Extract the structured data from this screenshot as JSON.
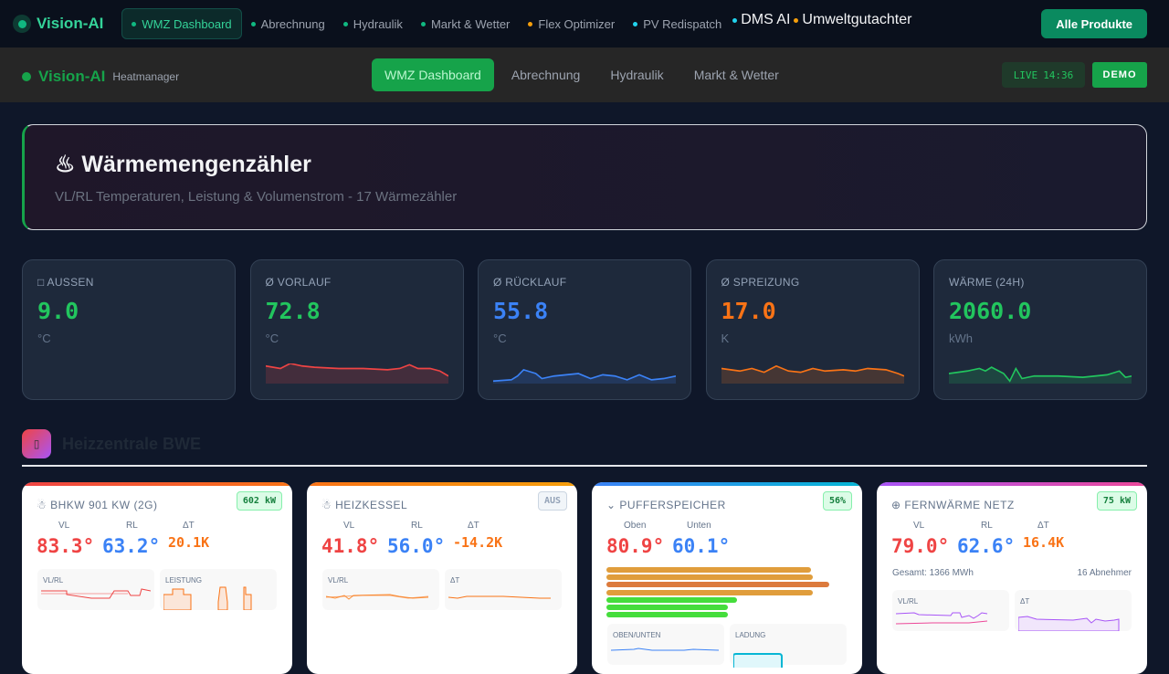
{
  "topbar": {
    "logo": "Vision-AI",
    "items": [
      {
        "label": "WMZ Dashboard",
        "dot": "#10b981"
      },
      {
        "label": "Abrechnung",
        "dot": "#10b981"
      },
      {
        "label": "Hydraulik",
        "dot": "#10b981"
      },
      {
        "label": "Markt & Wetter",
        "dot": "#10b981"
      },
      {
        "label": "Flex Optimizer",
        "dot": "#f59e0b"
      },
      {
        "label": "PV Redispatch",
        "dot": "#22d3ee"
      },
      {
        "label": "DMS AI",
        "dot": "#22d3ee"
      },
      {
        "label": "Umweltgutachter",
        "dot": "#f59e0b"
      }
    ],
    "all_products": "Alle Produkte"
  },
  "header": {
    "logo": "Vision-AI",
    "subtitle": "Heatmanager",
    "nav": [
      "WMZ Dashboard",
      "Abrechnung",
      "Hydraulik",
      "Markt & Wetter"
    ],
    "live_label": "LIVE",
    "time": "14:36",
    "demo": "DEMO"
  },
  "hero": {
    "icon": "fire-icon",
    "title": "Wärmemengenzähler",
    "subtitle": "VL/RL Temperaturen, Leistung & Volumenstrom - 17 Wärmezähler"
  },
  "stats": [
    {
      "label": "□ AUSSEN",
      "value": "9.0",
      "unit": "°C",
      "color": "#22c55e"
    },
    {
      "label": "Ø VORLAUF",
      "value": "72.8",
      "unit": "°C",
      "color": "#22c55e"
    },
    {
      "label": "Ø RÜCKLAUF",
      "value": "55.8",
      "unit": "°C",
      "color": "#3b82f6"
    },
    {
      "label": "Ø SPREIZUNG",
      "value": "17.0",
      "unit": "K",
      "color": "#f97316"
    },
    {
      "label": "WÄRME (24H)",
      "value": "2060.0",
      "unit": "kWh",
      "color": "#22c55e"
    }
  ],
  "section": {
    "icon": "building-icon",
    "title": "Heizzentrale BWE"
  },
  "cards": [
    {
      "title": "BHKW 901 KW (2G)",
      "badge": "602 kW",
      "labels": [
        "VL",
        "RL",
        "ΔT"
      ],
      "values": [
        "83.3°",
        "63.2°",
        "20.1K"
      ],
      "charts": [
        "VL/RL",
        "LEISTUNG"
      ]
    },
    {
      "title": "HEIZKESSEL",
      "badge": "AUS",
      "labels": [
        "VL",
        "RL",
        "ΔT"
      ],
      "values": [
        "41.8°",
        "56.0°",
        "-14.2K"
      ],
      "charts": [
        "VL/RL",
        "ΔT"
      ]
    },
    {
      "title": "PUFFERSPEICHER",
      "badge": "56%",
      "labels": [
        "Oben",
        "Unten"
      ],
      "values": [
        "80.9°",
        "60.1°"
      ],
      "charts": [
        "OBEN/UNTEN",
        "LADUNG"
      ],
      "layers": [
        0.86,
        0.87,
        0.94,
        0.87,
        0.55,
        0.51,
        0.51
      ]
    },
    {
      "title": "FERNWÄRME NETZ",
      "badge": "75 kW",
      "labels": [
        "VL",
        "RL",
        "ΔT"
      ],
      "values": [
        "79.0°",
        "62.6°",
        "16.4K"
      ],
      "total": "Gesamt: 1366 MWh",
      "consumers": "16 Abnehmer",
      "charts": [
        "VL/RL",
        "ΔT"
      ]
    }
  ]
}
